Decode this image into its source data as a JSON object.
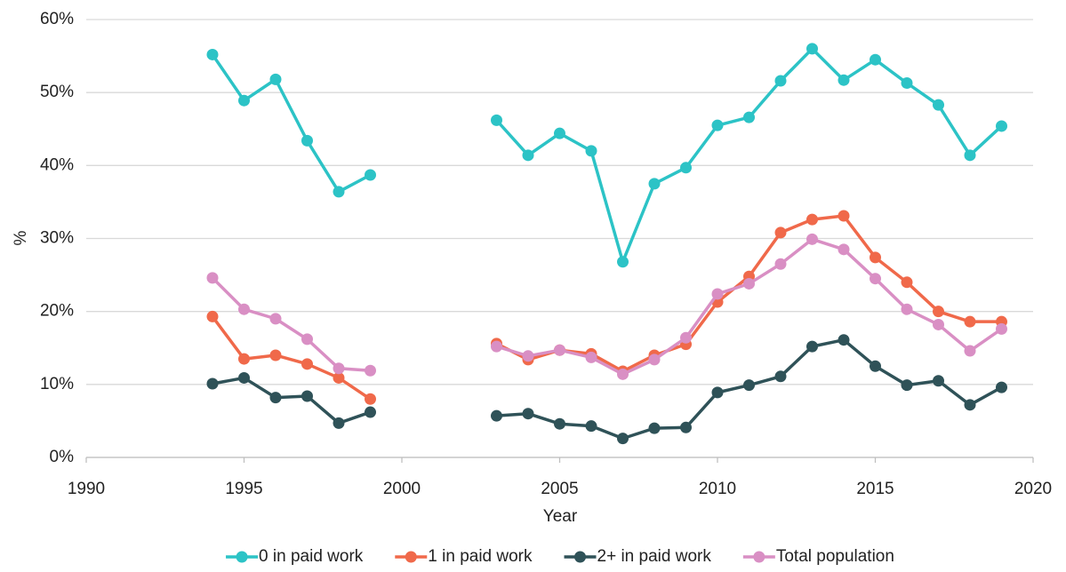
{
  "chart_data": {
    "type": "line",
    "x_label": "Year",
    "y_label": "%",
    "x": [
      1994,
      1995,
      1996,
      1997,
      1998,
      1999,
      2000,
      2001,
      2002,
      2003,
      2004,
      2005,
      2006,
      2007,
      2008,
      2009,
      2010,
      2011,
      2012,
      2013,
      2014,
      2015,
      2016,
      2017,
      2018,
      2019
    ],
    "series": [
      {
        "name": "0 in paid work",
        "color": "#2cc3c6",
        "values": [
          55.2,
          48.9,
          51.8,
          43.4,
          36.4,
          38.7,
          null,
          null,
          null,
          46.2,
          41.4,
          44.4,
          42.0,
          26.8,
          37.5,
          39.7,
          45.5,
          46.6,
          51.6,
          56.0,
          51.7,
          54.5,
          51.3,
          48.3,
          41.4,
          45.4
        ]
      },
      {
        "name": "1 in paid work",
        "color": "#f0694a",
        "values": [
          19.3,
          13.5,
          14.0,
          12.8,
          10.9,
          8.0,
          null,
          null,
          null,
          15.6,
          13.4,
          14.7,
          14.2,
          11.8,
          14.0,
          15.5,
          21.3,
          24.8,
          30.8,
          32.6,
          33.1,
          27.4,
          24.0,
          20.0,
          18.6,
          18.6
        ]
      },
      {
        "name": "2+ in paid work",
        "color": "#2f5258",
        "values": [
          10.1,
          10.9,
          8.2,
          8.4,
          4.7,
          6.2,
          null,
          null,
          null,
          5.7,
          6.0,
          4.6,
          4.3,
          2.6,
          4.0,
          4.1,
          8.9,
          9.9,
          11.1,
          15.2,
          16.1,
          12.5,
          9.9,
          10.5,
          7.2,
          9.6
        ]
      },
      {
        "name": "Total population",
        "color": "#d98fc4",
        "values": [
          24.6,
          20.3,
          19.0,
          16.2,
          12.2,
          11.9,
          null,
          null,
          null,
          15.2,
          13.9,
          14.7,
          13.7,
          11.4,
          13.4,
          16.4,
          22.4,
          23.8,
          26.5,
          29.9,
          28.5,
          24.5,
          20.3,
          18.2,
          14.6,
          17.6
        ]
      }
    ],
    "xlim": [
      1990,
      2020
    ],
    "xticks": [
      1990,
      1995,
      2000,
      2005,
      2010,
      2015,
      2020
    ],
    "ylim": [
      0,
      60
    ],
    "yticks": [
      {
        "value": 0,
        "label": "0%"
      },
      {
        "value": 10,
        "label": "10%"
      },
      {
        "value": 20,
        "label": "20%"
      },
      {
        "value": 30,
        "label": "30%"
      },
      {
        "value": 40,
        "label": "40%"
      },
      {
        "value": 50,
        "label": "50%"
      },
      {
        "value": 60,
        "label": "60%"
      }
    ],
    "grid": true,
    "legend": "bottom"
  }
}
